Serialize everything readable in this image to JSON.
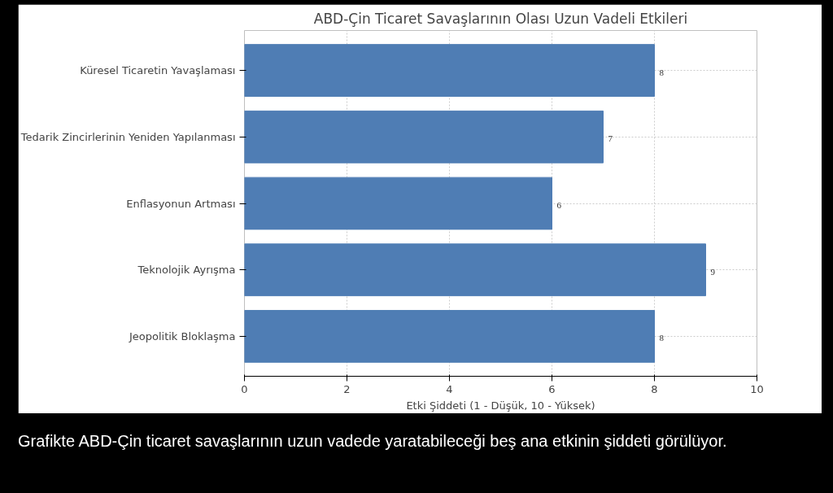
{
  "chart_data": {
    "type": "bar",
    "orientation": "horizontal",
    "title": "ABD-Çin Ticaret Savaşlarının Olası Uzun Vadeli Etkileri",
    "xlabel": "Etki Şiddeti (1 - Düşük, 10 - Yüksek)",
    "categories": [
      "Küresel Ticaretin Yavaşlaması",
      "Tedarik Zincirlerinin Yeniden Yapılanması",
      "Enflasyonun Artması",
      "Teknolojik Ayrışma",
      "Jeopolitik Bloklaşma"
    ],
    "values": [
      8,
      7,
      6,
      9,
      8
    ],
    "color": "#4f7db4",
    "xlim": [
      0,
      10
    ],
    "xticks": [
      0,
      2,
      4,
      6,
      8,
      10
    ],
    "grid": true,
    "data_labels": true,
    "annotations": [
      "Grafikte ABD-Çin ticaret savaşlarının uzun vadede yaratabileceği beş ana etkinin şiddeti görülüyor."
    ]
  }
}
